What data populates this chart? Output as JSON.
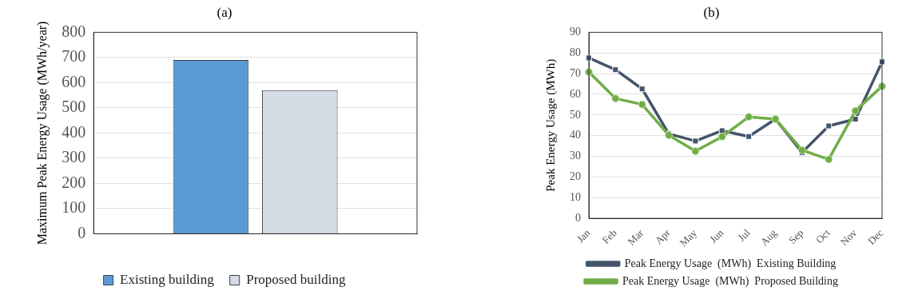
{
  "chart_data": [
    {
      "type": "bar",
      "title": "(a)",
      "ylabel": "Maximum Peak Energy Usage (MWh/year)",
      "categories": [
        null
      ],
      "series": [
        {
          "name": "Existing building",
          "color": "#5b9bd5",
          "values": [
            690
          ]
        },
        {
          "name": "Proposed building",
          "color": "#d6dce5",
          "values": [
            570
          ]
        }
      ],
      "ylim": [
        0,
        800
      ],
      "yticks": [
        0,
        100,
        200,
        300,
        400,
        500,
        600,
        700,
        800
      ],
      "grid": "y",
      "legend": "bottom"
    },
    {
      "type": "line",
      "title": "(b)",
      "ylabel": "Peak Energy Usage (MWh)",
      "categories": [
        "Jan",
        "Feb",
        "Mar",
        "Apr",
        "May",
        "Jun",
        "Jul",
        "Aug",
        "Sep",
        "Oct",
        "Nov",
        "Dec"
      ],
      "series": [
        {
          "name": "Peak Energy Usage  (MWh)  Existing Building",
          "color": "#44546a",
          "marker": "square",
          "values": [
            77.6,
            71.9,
            62.6,
            40.9,
            37.4,
            42.4,
            39.6,
            48,
            31.9,
            44.7,
            48,
            75.7
          ]
        },
        {
          "name": "Peak Energy Usage  (MWh)  Proposed Building",
          "color": "#70ad47",
          "marker": "circle",
          "values": [
            70.8,
            58,
            55.1,
            40.2,
            32.5,
            39.5,
            49.1,
            48,
            33,
            28.5,
            52,
            63.9
          ]
        }
      ],
      "ylim": [
        0,
        90
      ],
      "yticks": [
        0,
        10,
        20,
        30,
        40,
        50,
        60,
        70,
        80,
        90
      ],
      "grid": "y",
      "legend": "bottom",
      "line_style": "solid"
    }
  ]
}
